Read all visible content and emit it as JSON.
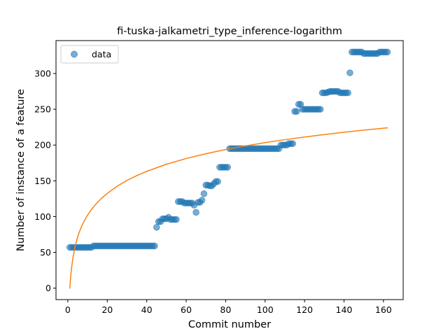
{
  "chart_data": {
    "type": "scatter",
    "title": "fi-tuska-jalkametri_type_inference-logarithm",
    "xlabel": "Commit number",
    "ylabel": "Number of instance of a feature",
    "xlim": [
      -6,
      170
    ],
    "ylim": [
      -16,
      346
    ],
    "xticks": [
      0,
      20,
      40,
      60,
      80,
      100,
      120,
      140,
      160
    ],
    "yticks": [
      0,
      50,
      100,
      150,
      200,
      250,
      300
    ],
    "grid": false,
    "legend": {
      "placement": "top-left",
      "entries": [
        "data"
      ]
    },
    "colors": {
      "data": "#1f77b4",
      "fit": "#ff7f0e"
    },
    "series": [
      {
        "name": "data",
        "kind": "scatter",
        "x": [
          1,
          2,
          3,
          4,
          5,
          6,
          7,
          8,
          9,
          10,
          11,
          12,
          13,
          14,
          15,
          16,
          17,
          18,
          19,
          20,
          21,
          22,
          23,
          24,
          25,
          26,
          27,
          28,
          29,
          30,
          31,
          32,
          33,
          34,
          35,
          36,
          37,
          38,
          39,
          40,
          41,
          42,
          43,
          44,
          45,
          46,
          47,
          48,
          49,
          50,
          51,
          52,
          53,
          54,
          55,
          56,
          57,
          58,
          59,
          60,
          61,
          62,
          63,
          64,
          65,
          66,
          67,
          68,
          69,
          70,
          71,
          72,
          73,
          74,
          75,
          76,
          77,
          78,
          79,
          80,
          81,
          82,
          83,
          84,
          85,
          86,
          87,
          88,
          89,
          90,
          91,
          92,
          93,
          94,
          95,
          96,
          97,
          98,
          99,
          100,
          101,
          102,
          103,
          104,
          105,
          106,
          107,
          108,
          109,
          110,
          111,
          112,
          113,
          114,
          115,
          116,
          117,
          118,
          119,
          120,
          121,
          122,
          123,
          124,
          125,
          126,
          127,
          128,
          129,
          130,
          131,
          132,
          133,
          134,
          135,
          136,
          137,
          138,
          139,
          140,
          141,
          142,
          143,
          144,
          145,
          146,
          147,
          148,
          149,
          150,
          151,
          152,
          153,
          154,
          155,
          156,
          157,
          158,
          159,
          160,
          161,
          162
        ],
        "y": [
          57,
          57,
          57,
          57,
          57,
          57,
          57,
          57,
          57,
          57,
          57,
          57,
          59,
          59,
          59,
          59,
          59,
          59,
          59,
          59,
          59,
          59,
          59,
          59,
          59,
          59,
          59,
          59,
          59,
          59,
          59,
          59,
          59,
          59,
          59,
          59,
          59,
          59,
          59,
          59,
          59,
          59,
          59,
          59,
          85,
          93,
          93,
          97,
          97,
          97,
          99,
          96,
          96,
          96,
          96,
          121,
          121,
          121,
          119,
          119,
          119,
          119,
          119,
          116,
          106,
          120,
          120,
          123,
          132,
          144,
          144,
          143,
          143,
          146,
          149,
          149,
          169,
          169,
          169,
          169,
          169,
          195,
          195,
          195,
          195,
          195,
          195,
          195,
          195,
          195,
          195,
          195,
          195,
          195,
          195,
          195,
          195,
          195,
          195,
          195,
          195,
          195,
          195,
          195,
          195,
          195,
          195,
          200,
          200,
          200,
          200,
          202,
          202,
          202,
          247,
          247,
          257,
          257,
          250,
          250,
          250,
          250,
          250,
          250,
          250,
          250,
          250,
          250,
          273,
          273,
          273,
          274,
          275,
          275,
          275,
          275,
          275,
          273,
          273,
          273,
          273,
          273,
          301,
          330,
          330,
          330,
          330,
          330,
          330,
          328,
          328,
          328,
          328,
          328,
          328,
          328,
          328,
          330,
          330,
          330,
          330,
          330
        ],
        "marker": "circle",
        "alpha": 0.6
      },
      {
        "name": "",
        "kind": "line",
        "x": [
          1,
          1.3,
          1.6,
          2,
          2.5,
          3,
          3.5,
          4,
          5,
          6,
          7,
          8,
          10,
          12,
          14,
          17,
          20,
          25,
          30,
          35,
          40,
          50,
          60,
          70,
          80,
          90,
          100,
          110,
          120,
          130,
          140,
          150,
          162
        ],
        "y": [
          0,
          11.6,
          20.8,
          30.5,
          40.6,
          48.9,
          55.9,
          61.9,
          71.8,
          79.8,
          86.5,
          92.3,
          102.1,
          110.1,
          116.8,
          125.5,
          132.4,
          142.5,
          150.6,
          157.4,
          163.3,
          173.2,
          181.2,
          187.9,
          193.7,
          198.8,
          203.4,
          207.5,
          211.2,
          214.7,
          217.9,
          220.9,
          224.1
        ],
        "stroke_width": 1.5
      }
    ]
  }
}
